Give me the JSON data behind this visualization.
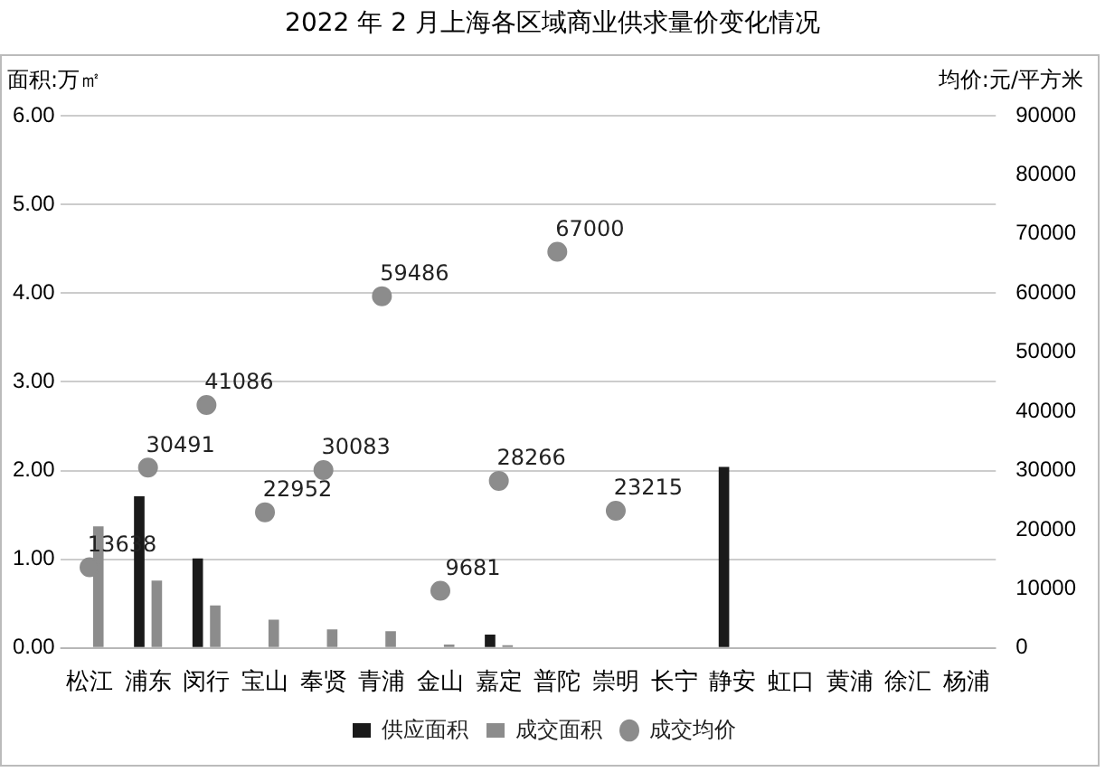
{
  "chart_data": {
    "type": "bar",
    "title": "2022 年 2 月上海各区域商业供求量价变化情况",
    "ylabel": "面积:万㎡",
    "y2label": "均价:元/平方米",
    "categories": [
      "松江",
      "浦东",
      "闵行",
      "宝山",
      "奉贤",
      "青浦",
      "金山",
      "嘉定",
      "普陀",
      "崇明",
      "长宁",
      "静安",
      "虹口",
      "黄浦",
      "徐汇",
      "杨浦"
    ],
    "series": [
      {
        "name": "供应面积",
        "color": "#1a1a1a",
        "values": [
          null,
          1.71,
          1.01,
          null,
          null,
          null,
          null,
          0.15,
          null,
          null,
          null,
          2.04,
          null,
          null,
          null,
          null
        ]
      },
      {
        "name": "成交面积",
        "color": "#8c8c8c",
        "values": [
          1.37,
          0.76,
          0.48,
          0.32,
          0.21,
          0.19,
          0.04,
          0.03,
          null,
          null,
          null,
          null,
          null,
          null,
          null,
          null
        ]
      },
      {
        "name": "成交均价",
        "type": "scatter",
        "axis": "y2",
        "color": "#8c8c8c",
        "marker": "circle",
        "values": [
          13638,
          30491,
          41086,
          22952,
          30083,
          59486,
          9681,
          28266,
          67000,
          23215,
          null,
          null,
          null,
          null,
          null,
          null
        ],
        "value_labels": [
          "13638",
          "30491",
          "41086",
          "22952",
          "30083",
          "59486",
          "9681",
          "28266",
          "67000",
          "23215",
          null,
          null,
          null,
          null,
          null,
          null
        ]
      }
    ],
    "ylim": [
      0,
      6
    ],
    "yticks": [
      {
        "value": 0,
        "label": "0.00"
      },
      {
        "value": 1,
        "label": "1.00"
      },
      {
        "value": 2,
        "label": "2.00"
      },
      {
        "value": 3,
        "label": "3.00"
      },
      {
        "value": 4,
        "label": "4.00"
      },
      {
        "value": 5,
        "label": "5.00"
      },
      {
        "value": 6,
        "label": "6.00"
      }
    ],
    "y2lim": [
      0,
      90000
    ],
    "y2ticks": [
      0,
      10000,
      20000,
      30000,
      40000,
      50000,
      60000,
      70000,
      80000,
      90000
    ],
    "grid": "y",
    "legend": "bottom"
  }
}
